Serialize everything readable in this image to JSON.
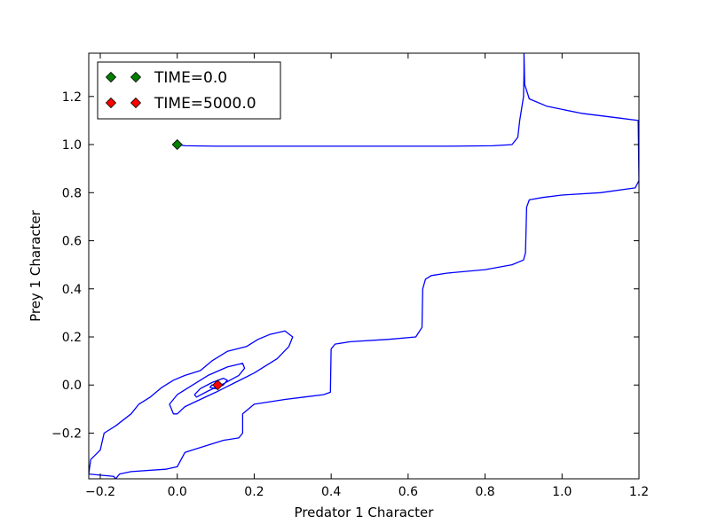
{
  "chart_data": {
    "type": "line",
    "xlabel": "Predator 1 Character",
    "ylabel": "Prey 1 Character",
    "xlim": [
      -0.23,
      1.2
    ],
    "ylim": [
      -0.39,
      1.38
    ],
    "x_ticks": [
      -0.2,
      0.0,
      0.2,
      0.4,
      0.6,
      0.8,
      1.0,
      1.2
    ],
    "x_tick_labels": [
      "−0.2",
      "0.0",
      "0.2",
      "0.4",
      "0.6",
      "0.8",
      "1.0",
      "1.2"
    ],
    "y_ticks": [
      -0.2,
      0.0,
      0.2,
      0.4,
      0.6,
      0.8,
      1.0,
      1.2
    ],
    "y_tick_labels": [
      "−0.2",
      "0.0",
      "0.2",
      "0.4",
      "0.6",
      "0.8",
      "1.0",
      "1.2"
    ],
    "grid": false,
    "legend_position": "top-left",
    "trajectory": {
      "color": "#0000ff",
      "points": [
        [
          0.0,
          1.0
        ],
        [
          0.02,
          0.995
        ],
        [
          0.1,
          0.993
        ],
        [
          0.3,
          0.993
        ],
        [
          0.5,
          0.993
        ],
        [
          0.7,
          0.993
        ],
        [
          0.82,
          0.995
        ],
        [
          0.87,
          1.0
        ],
        [
          0.885,
          1.03
        ],
        [
          0.89,
          1.1
        ],
        [
          0.9,
          1.2
        ],
        [
          0.901,
          1.3
        ],
        [
          0.901,
          1.38
        ],
        [
          0.903,
          1.25
        ],
        [
          0.915,
          1.19
        ],
        [
          0.96,
          1.16
        ],
        [
          1.05,
          1.13
        ],
        [
          1.15,
          1.11
        ],
        [
          1.198,
          1.1
        ],
        [
          1.2,
          0.85
        ],
        [
          1.19,
          0.82
        ],
        [
          1.1,
          0.8
        ],
        [
          1.0,
          0.79
        ],
        [
          0.95,
          0.78
        ],
        [
          0.915,
          0.77
        ],
        [
          0.908,
          0.74
        ],
        [
          0.905,
          0.55
        ],
        [
          0.9,
          0.52
        ],
        [
          0.87,
          0.5
        ],
        [
          0.8,
          0.48
        ],
        [
          0.7,
          0.465
        ],
        [
          0.66,
          0.455
        ],
        [
          0.645,
          0.44
        ],
        [
          0.638,
          0.4
        ],
        [
          0.636,
          0.24
        ],
        [
          0.62,
          0.2
        ],
        [
          0.55,
          0.19
        ],
        [
          0.45,
          0.18
        ],
        [
          0.41,
          0.17
        ],
        [
          0.4,
          0.15
        ],
        [
          0.398,
          -0.03
        ],
        [
          0.38,
          -0.04
        ],
        [
          0.33,
          -0.05
        ],
        [
          0.28,
          -0.06
        ],
        [
          0.2,
          -0.08
        ],
        [
          0.17,
          -0.12
        ],
        [
          0.17,
          -0.2
        ],
        [
          0.16,
          -0.22
        ],
        [
          0.12,
          -0.23
        ],
        [
          0.08,
          -0.25
        ],
        [
          0.02,
          -0.28
        ],
        [
          0.0,
          -0.34
        ],
        [
          -0.03,
          -0.35
        ],
        [
          -0.12,
          -0.36
        ],
        [
          -0.15,
          -0.37
        ],
        [
          -0.16,
          -0.39
        ],
        [
          -0.165,
          -0.38
        ],
        [
          -0.2,
          -0.375
        ],
        [
          -0.23,
          -0.37
        ],
        [
          -0.225,
          -0.31
        ],
        [
          -0.2,
          -0.27
        ],
        [
          -0.19,
          -0.2
        ],
        [
          -0.16,
          -0.17
        ],
        [
          -0.12,
          -0.12
        ],
        [
          -0.1,
          -0.08
        ],
        [
          -0.07,
          -0.05
        ],
        [
          -0.04,
          -0.01
        ],
        [
          -0.01,
          0.02
        ],
        [
          0.02,
          0.04
        ],
        [
          0.06,
          0.06
        ],
        [
          0.09,
          0.1
        ],
        [
          0.13,
          0.14
        ],
        [
          0.18,
          0.16
        ],
        [
          0.21,
          0.19
        ],
        [
          0.24,
          0.21
        ],
        [
          0.28,
          0.225
        ],
        [
          0.3,
          0.2
        ],
        [
          0.29,
          0.16
        ],
        [
          0.26,
          0.11
        ],
        [
          0.2,
          0.05
        ],
        [
          0.15,
          0.01
        ],
        [
          0.1,
          -0.03
        ],
        [
          0.06,
          -0.06
        ],
        [
          0.02,
          -0.09
        ],
        [
          0.0,
          -0.12
        ],
        [
          -0.01,
          -0.12
        ],
        [
          -0.02,
          -0.08
        ],
        [
          0.0,
          -0.04
        ],
        [
          0.04,
          0.0
        ],
        [
          0.08,
          0.04
        ],
        [
          0.13,
          0.075
        ],
        [
          0.17,
          0.09
        ],
        [
          0.175,
          0.07
        ],
        [
          0.16,
          0.04
        ],
        [
          0.12,
          0.005
        ],
        [
          0.08,
          -0.025
        ],
        [
          0.05,
          -0.05
        ],
        [
          0.045,
          -0.04
        ],
        [
          0.06,
          -0.015
        ],
        [
          0.09,
          0.01
        ],
        [
          0.12,
          0.028
        ],
        [
          0.13,
          0.02
        ],
        [
          0.12,
          0.0
        ],
        [
          0.1,
          -0.015
        ],
        [
          0.085,
          -0.01
        ],
        [
          0.09,
          0.0
        ],
        [
          0.105,
          0.0
        ]
      ]
    },
    "markers": [
      {
        "label": "TIME=0.0",
        "x": 0.0,
        "y": 1.0,
        "color": "#008000"
      },
      {
        "label": "TIME=5000.0",
        "x": 0.105,
        "y": 0.0,
        "color": "#ff0000"
      }
    ]
  }
}
